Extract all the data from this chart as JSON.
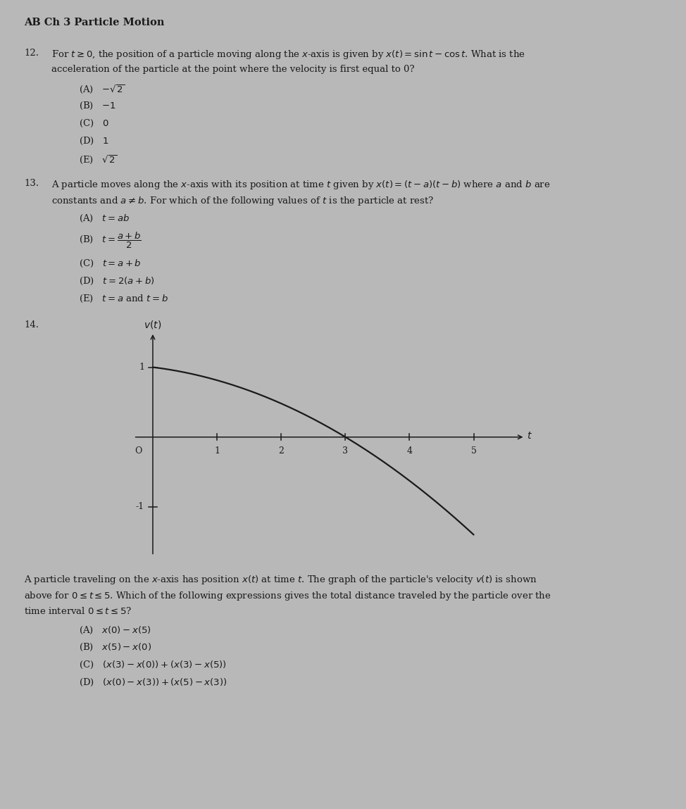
{
  "title": "AB Ch 3 Particle Motion",
  "bg_color": "#b8b8b8",
  "text_color": "#1a1a1a",
  "font_size_title": 10.5,
  "font_size_body": 9.5,
  "font_size_choice": 9.5,
  "graph_curve_color": "#1a1a1a",
  "graph_bg": "#b8b8b8"
}
